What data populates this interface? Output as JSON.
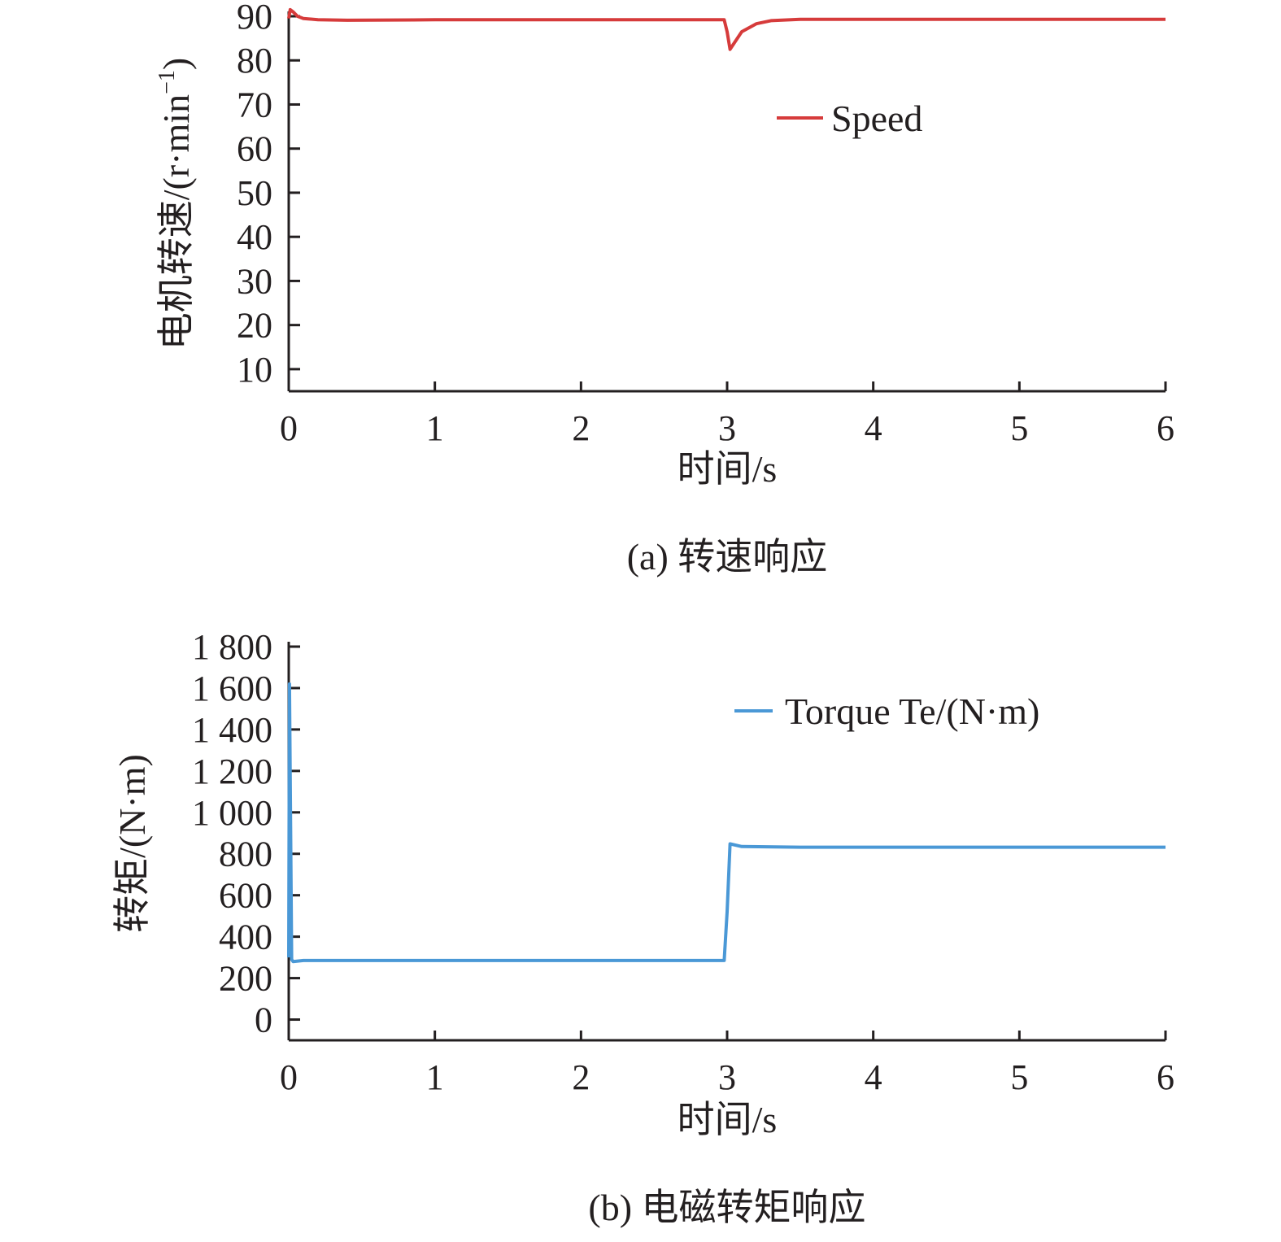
{
  "chart_data": [
    {
      "type": "line",
      "caption": "(a) 转速响应",
      "xlabel": "时间/s",
      "ylabel_main": "电机转速/(r·min",
      "ylabel_sup": "−1",
      "ylabel_close": ")",
      "x_ticks": [
        "0",
        "1",
        "2",
        "3",
        "4",
        "5",
        "6"
      ],
      "y_ticks": [
        "10",
        "20",
        "30",
        "40",
        "50",
        "60",
        "70",
        "80",
        "90"
      ],
      "xlim": [
        0,
        6
      ],
      "ylim": [
        5,
        90
      ],
      "legend": {
        "label": "Speed",
        "position": "top-right"
      },
      "colors": {
        "series": "#d63b3b"
      },
      "series": [
        {
          "name": "Speed",
          "x": [
            0,
            0.01,
            0.03,
            0.06,
            0.1,
            0.2,
            0.4,
            1.0,
            2.0,
            2.98,
            3.0,
            3.02,
            3.05,
            3.1,
            3.2,
            3.3,
            3.5,
            4.0,
            5.0,
            6.0
          ],
          "y": [
            89.5,
            91.5,
            91.0,
            90.0,
            89.5,
            89.2,
            89.1,
            89.2,
            89.2,
            89.2,
            86.5,
            82.5,
            84.0,
            86.5,
            88.3,
            89.0,
            89.3,
            89.3,
            89.3,
            89.3
          ]
        }
      ]
    },
    {
      "type": "line",
      "caption": "(b) 电磁转矩响应",
      "xlabel": "时间/s",
      "ylabel": "转矩/(N·m)",
      "x_ticks": [
        "0",
        "1",
        "2",
        "3",
        "4",
        "5",
        "6"
      ],
      "y_ticks": [
        "0",
        "200",
        "400",
        "600",
        "800",
        "1 000",
        "1 200",
        "1 400",
        "1 600",
        "1 800"
      ],
      "xlim": [
        0,
        6
      ],
      "ylim": [
        -100,
        1800
      ],
      "legend": {
        "label": "Torque Te/(N·m)",
        "position": "top-right"
      },
      "colors": {
        "series": "#4a98d6"
      },
      "series": [
        {
          "name": "Torque Te/(N·m)",
          "x": [
            0,
            0.005,
            0.02,
            0.03,
            0.1,
            1.0,
            2.0,
            2.98,
            3.0,
            3.02,
            3.1,
            3.5,
            4.0,
            5.0,
            6.0
          ],
          "y": [
            300,
            1620,
            290,
            280,
            285,
            285,
            285,
            285,
            520,
            848,
            835,
            832,
            832,
            832,
            832
          ]
        }
      ]
    }
  ]
}
